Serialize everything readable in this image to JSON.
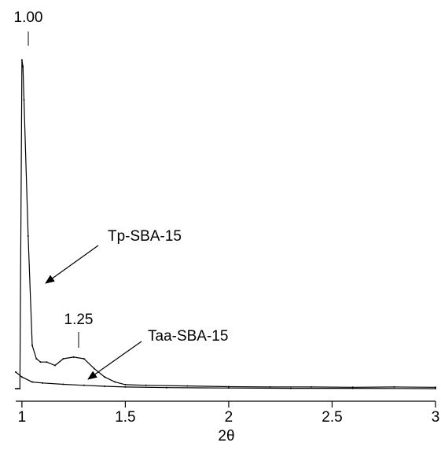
{
  "chart_data": {
    "type": "line",
    "xlabel": "2θ",
    "ylabel": "",
    "title": "",
    "xlim": [
      0.97,
      3.0
    ],
    "ylim": [
      0,
      100
    ],
    "grid": false,
    "x_ticks": [
      1,
      1.5,
      2,
      2.5,
      3
    ],
    "x_tick_labels": [
      "1",
      "1.5",
      "2",
      "2.5",
      "3"
    ],
    "series": [
      {
        "name": "Tp-SBA-15",
        "x": [
          0.97,
          0.98,
          0.99,
          1.0,
          1.005,
          1.01,
          1.03,
          1.05,
          1.07,
          1.09,
          1.12,
          1.16,
          1.2,
          1.25,
          1.3,
          1.35,
          1.4,
          1.45,
          1.5,
          1.6,
          1.8,
          2.0,
          2.2,
          2.4,
          2.6,
          2.8,
          3.0
        ],
        "y": [
          0,
          0,
          0,
          99,
          97,
          87,
          46,
          13,
          9,
          8,
          8,
          7,
          9,
          9.5,
          9,
          6,
          3.5,
          2,
          1.2,
          1,
          0.8,
          0.6,
          0.5,
          0.5,
          0.4,
          0.5,
          0.4
        ]
      },
      {
        "name": "Taa-SBA-15",
        "x": [
          0.97,
          1.0,
          1.05,
          1.1,
          1.2,
          1.3,
          1.4,
          1.5,
          1.7,
          2.0,
          2.3,
          2.6,
          3.0
        ],
        "y": [
          5,
          3.5,
          2,
          1.7,
          1.3,
          1,
          0.7,
          0.5,
          0.3,
          0.2,
          0.1,
          0.1,
          0
        ]
      }
    ],
    "annotations": [
      {
        "text": "1.00",
        "x": 1.0
      },
      {
        "text": "1.25",
        "x": 1.25
      },
      {
        "text": "Tp-SBA-15",
        "points_to": "Tp-SBA-15"
      },
      {
        "text": "Taa-SBA-15",
        "points_to": "Taa-SBA-15"
      }
    ]
  }
}
